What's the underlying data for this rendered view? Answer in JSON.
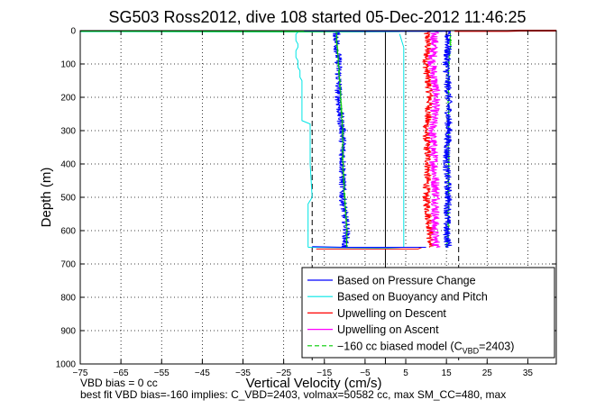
{
  "chart_data": {
    "type": "line",
    "title": "SG503 Ross2012, dive 108 started 05-Dec-2012 11:46:25",
    "xlabel": "Vertical Velocity (cm/s)",
    "ylabel": "Depth (m)",
    "xlim": [
      -75,
      42
    ],
    "ylim": [
      0,
      1000
    ],
    "y_reversed": true,
    "grid": true,
    "grid_style": "dotted",
    "xticks": [
      -75,
      -65,
      -55,
      -45,
      -35,
      -25,
      -15,
      -5,
      5,
      15,
      25,
      35
    ],
    "yticks": [
      0,
      100,
      200,
      300,
      400,
      500,
      600,
      700,
      800,
      900,
      1000
    ],
    "legend_position": "bottom-right",
    "legend": [
      {
        "label": "Based on Pressure Change",
        "color": "#0000ff",
        "dash": false
      },
      {
        "label": "Based on Buoyancy and Pitch",
        "color": "#00e5e5",
        "dash": false
      },
      {
        "label": "Upwelling on Descent",
        "color": "#ff0000",
        "dash": false
      },
      {
        "label": "Upwelling on Ascent",
        "color": "#ff00ff",
        "dash": false
      },
      {
        "label_main": "−160 cc biased model (C",
        "label_sub": "VBD",
        "label_end": "=2403)",
        "color": "#00cc00",
        "dash": true
      }
    ],
    "series": [
      {
        "color": "#ff0000",
        "width": 1,
        "noise": 0.9,
        "depth": [
          0,
          30,
          100,
          200,
          300,
          400,
          500,
          600,
          650
        ],
        "x": [
          10,
          10.5,
          10,
          11,
          10,
          10.5,
          10,
          11,
          11
        ]
      },
      {
        "color": "#ff00ff",
        "width": 1,
        "noise": 1.1,
        "depth": [
          0,
          30,
          100,
          200,
          300,
          400,
          500,
          600,
          650
        ],
        "x": [
          12,
          12,
          11.5,
          12.5,
          11.5,
          12,
          12.5,
          12,
          12.5
        ]
      },
      {
        "color": "#00cc00",
        "width": 1,
        "noise": 0.2,
        "depth": [
          0,
          30,
          100,
          200,
          300,
          400,
          500,
          600,
          650
        ],
        "x": [
          16,
          16,
          15.5,
          15.5,
          15.5,
          15.5,
          15.5,
          15.5,
          15
        ]
      },
      {
        "color": "#0000ff",
        "width": 1,
        "noise": 0.9,
        "depth": [
          0,
          30,
          100,
          200,
          300,
          400,
          500,
          600,
          650
        ],
        "x": [
          15,
          15.5,
          15,
          15.5,
          15.5,
          15,
          15.5,
          15,
          15.5
        ]
      },
      {
        "color": "#0000ff",
        "width": 1,
        "noise": 0.9,
        "depth": [
          0,
          30,
          100,
          200,
          270,
          300,
          400,
          500,
          550,
          600,
          650
        ],
        "x": [
          -12,
          -12,
          -11.5,
          -11.5,
          -11,
          -10.5,
          -10.5,
          -10.5,
          -10,
          -9.5,
          -10
        ]
      },
      {
        "color": "#00cc00",
        "width": 1,
        "noise": 0.15,
        "depth": [
          0,
          30,
          100,
          200,
          300,
          400,
          500,
          600,
          650
        ],
        "x": [
          -12,
          -12,
          -11.5,
          -11,
          -10.5,
          -10.5,
          -10,
          -9.5,
          -9.5
        ]
      },
      {
        "color": "#00e5e5",
        "width": 1,
        "noise": 0,
        "depth": [
          5,
          10,
          30,
          40,
          50,
          60,
          80,
          90,
          110,
          120,
          140,
          150,
          200,
          270,
          280,
          400,
          500,
          520,
          600,
          650
        ],
        "x": [
          -21.5,
          -22,
          -22,
          -21.5,
          -21.5,
          -22,
          -22,
          -21.5,
          -21.5,
          -21,
          -21,
          -20.5,
          -20.5,
          -20.5,
          -18.5,
          -18.5,
          -18,
          -19,
          -19,
          -19
        ]
      },
      {
        "color": "#00e5e5",
        "width": 1,
        "noise": 0,
        "depth": [
          650,
          653,
          650,
          600,
          500,
          300,
          100,
          50,
          30,
          10
        ],
        "x": [
          -19,
          0,
          4.5,
          4.5,
          4.5,
          4.5,
          4.5,
          4.5,
          4,
          3.5
        ]
      },
      {
        "color": "#ff0000",
        "width": 1,
        "noise": 0,
        "depth": [
          655,
          655,
          650
        ],
        "x": [
          -17,
          8,
          9
        ]
      },
      {
        "color": "#0000ff",
        "width": 1,
        "noise": 0,
        "depth": [
          648,
          650,
          650
        ],
        "x": [
          -18,
          -10,
          10
        ]
      },
      {
        "color": "#00e5e5",
        "width": 1,
        "noise": 0,
        "depth": [
          3,
          4,
          3
        ],
        "x": [
          -75,
          -20,
          3.5
        ]
      },
      {
        "color": "#00cc00",
        "width": 1,
        "noise": 0,
        "depth": [
          2,
          3,
          2
        ],
        "x": [
          -75,
          -20,
          14
        ]
      },
      {
        "color": "#0000ff",
        "width": 1,
        "noise": 0,
        "depth": [
          1,
          2,
          2
        ],
        "x": [
          -20,
          -5,
          16
        ]
      },
      {
        "color": "#ff0000",
        "width": 2,
        "noise": 0,
        "depth": [
          1,
          1,
          0,
          0
        ],
        "x": [
          17,
          30,
          33,
          42
        ]
      }
    ],
    "reference_lines": [
      {
        "x": 0,
        "style": "solid"
      },
      {
        "x": -18,
        "style": "dashed"
      },
      {
        "x": 18,
        "style": "dashed"
      }
    ]
  },
  "notes": {
    "line1": "VBD bias = 0 cc",
    "line2": "best fit VBD bias=-160 implies: C_VBD=2403, volmax=50582 cc, max SM_CC=480, max"
  }
}
